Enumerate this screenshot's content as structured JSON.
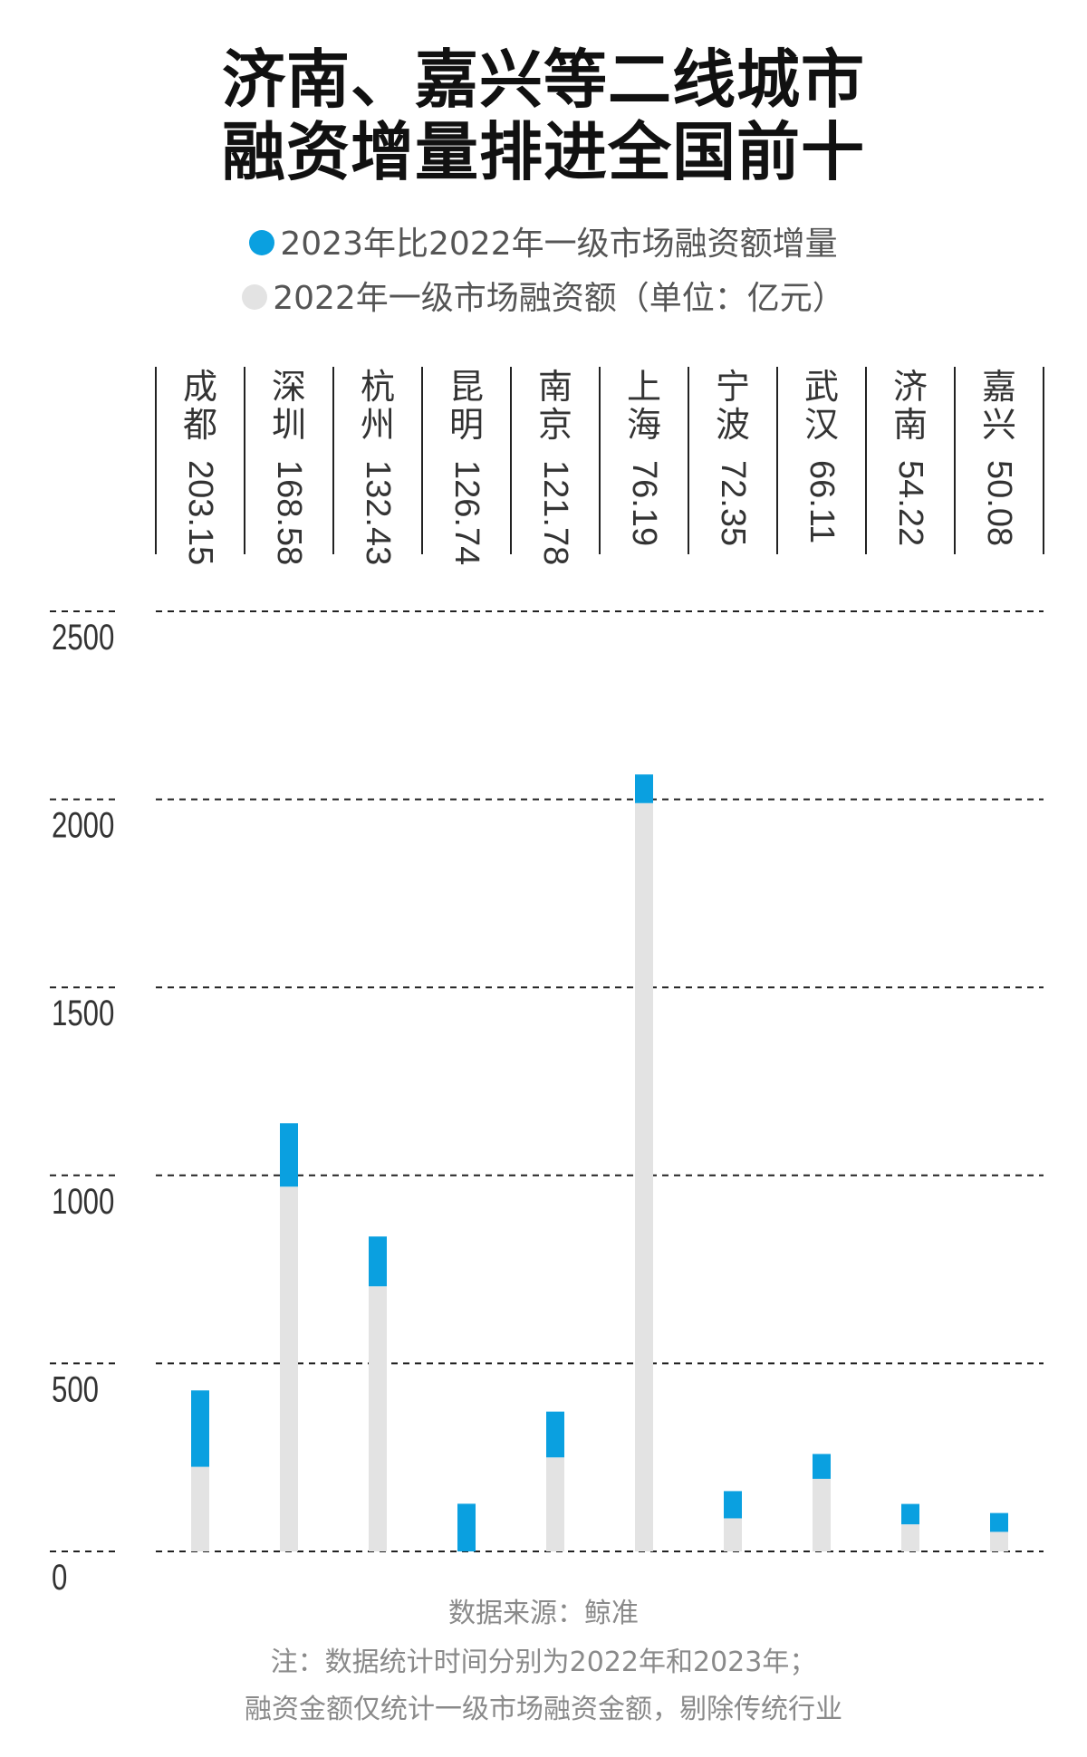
{
  "title_line1": "济南、嘉兴等二线城市",
  "title_line2": "融资增量排进全国前十",
  "legend": {
    "increase_label": "2023年比2022年一级市场融资额增量",
    "base_label": "2022年一级市场融资额（单位：亿元）"
  },
  "colors": {
    "increase": "#0aa0e0",
    "base": "#e3e3e3",
    "grid": "#222222"
  },
  "chart_data": {
    "type": "bar",
    "stacked": true,
    "categories": [
      "成都",
      "深圳",
      "杭州",
      "昆明",
      "南京",
      "上海",
      "宁波",
      "武汉",
      "济南",
      "嘉兴"
    ],
    "increase_labels": [
      "203.15",
      "168.58",
      "132.43",
      "126.74",
      "121.78",
      "76.19",
      "72.35",
      "66.11",
      "54.22",
      "50.08"
    ],
    "series": [
      {
        "name": "2022年一级市场融资额",
        "values": [
          225,
          970,
          705,
          0,
          250,
          1990,
          88,
          193,
          72,
          52
        ]
      },
      {
        "name": "2023年比2022年一级市场融资额增量",
        "values": [
          203.15,
          168.58,
          132.43,
          126.74,
          121.78,
          76.19,
          72.35,
          66.11,
          54.22,
          50.08
        ]
      }
    ],
    "yticks": [
      "2500",
      "2000",
      "1500",
      "1000",
      "500",
      "0"
    ],
    "ylim": [
      0,
      2500
    ]
  },
  "notes": {
    "source": "数据来源：鲸准",
    "line1": "注：数据统计时间分别为2022年和2023年；",
    "line2": "融资金额仅统计一级市场融资金额，剔除传统行业"
  }
}
